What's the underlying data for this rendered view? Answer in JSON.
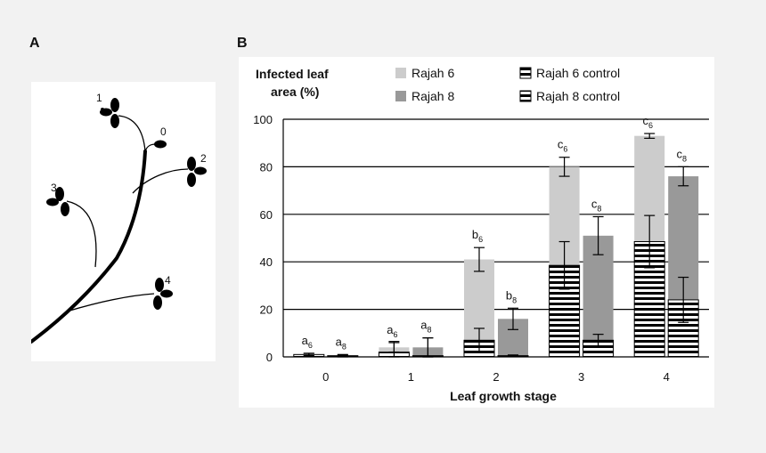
{
  "panels": {
    "a_label": "A",
    "b_label": "B"
  },
  "plant": {
    "leaf_labels": [
      "0",
      "1",
      "2",
      "3",
      "4"
    ]
  },
  "chart_data": {
    "type": "bar",
    "ylabel_line1": "Infected leaf",
    "ylabel_line2": "area (%)",
    "xlabel": "Leaf growth stage",
    "categories": [
      "0",
      "1",
      "2",
      "3",
      "4"
    ],
    "ylim": [
      0,
      100
    ],
    "yticks": [
      0,
      20,
      40,
      60,
      80,
      100
    ],
    "grid": true,
    "legend_position": "top",
    "series": [
      {
        "name": "Rajah 6",
        "color": "#cccccc",
        "pattern": "solid",
        "values": [
          1,
          4,
          41,
          80,
          93
        ],
        "err": [
          0.5,
          2,
          5,
          4,
          1
        ],
        "letters": [
          "a",
          "a",
          "b",
          "c",
          "c"
        ],
        "subscript": "6"
      },
      {
        "name": "Rajah 8",
        "color": "#999999",
        "pattern": "solid",
        "values": [
          0.5,
          4,
          16,
          51,
          76
        ],
        "err": [
          0.5,
          4,
          4.5,
          8,
          4
        ],
        "letters": [
          "a",
          "a",
          "b",
          "c",
          "c"
        ],
        "subscript": "8"
      },
      {
        "name": "Rajah 6 control",
        "color": "#000000",
        "pattern": "stripes",
        "values": [
          1,
          2,
          7,
          38.5,
          48.5
        ],
        "err": [
          0.5,
          4.5,
          5,
          10,
          11
        ]
      },
      {
        "name": "Rajah 8 control",
        "color": "#000000",
        "pattern": "stripes",
        "values": [
          0.5,
          0.5,
          0.5,
          7,
          24
        ],
        "err": [
          0.3,
          7.5,
          0.3,
          2.5,
          9.5
        ]
      }
    ]
  }
}
